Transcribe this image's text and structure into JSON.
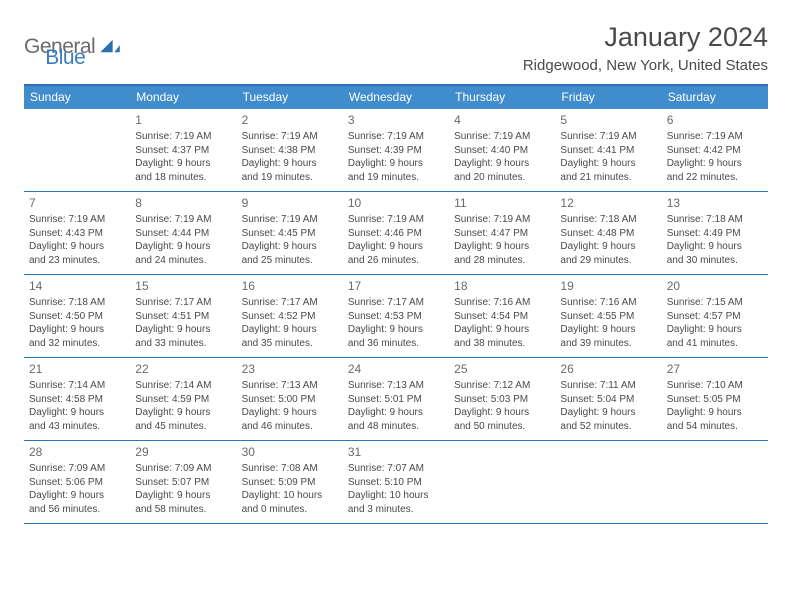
{
  "logo": {
    "part1": "General",
    "part2": "Blue"
  },
  "title": "January 2024",
  "location": "Ridgewood, New York, United States",
  "weekdays": [
    "Sunday",
    "Monday",
    "Tuesday",
    "Wednesday",
    "Thursday",
    "Friday",
    "Saturday"
  ],
  "colors": {
    "header_bg": "#418ccc",
    "header_border": "#2874b8",
    "logo_gray": "#6c6c6c",
    "logo_blue": "#3a7cbf",
    "text": "#4a4a4a"
  },
  "weeks": [
    [
      {
        "day": "",
        "sunrise": "",
        "sunset": "",
        "dl1": "",
        "dl2": ""
      },
      {
        "day": "1",
        "sunrise": "Sunrise: 7:19 AM",
        "sunset": "Sunset: 4:37 PM",
        "dl1": "Daylight: 9 hours",
        "dl2": "and 18 minutes."
      },
      {
        "day": "2",
        "sunrise": "Sunrise: 7:19 AM",
        "sunset": "Sunset: 4:38 PM",
        "dl1": "Daylight: 9 hours",
        "dl2": "and 19 minutes."
      },
      {
        "day": "3",
        "sunrise": "Sunrise: 7:19 AM",
        "sunset": "Sunset: 4:39 PM",
        "dl1": "Daylight: 9 hours",
        "dl2": "and 19 minutes."
      },
      {
        "day": "4",
        "sunrise": "Sunrise: 7:19 AM",
        "sunset": "Sunset: 4:40 PM",
        "dl1": "Daylight: 9 hours",
        "dl2": "and 20 minutes."
      },
      {
        "day": "5",
        "sunrise": "Sunrise: 7:19 AM",
        "sunset": "Sunset: 4:41 PM",
        "dl1": "Daylight: 9 hours",
        "dl2": "and 21 minutes."
      },
      {
        "day": "6",
        "sunrise": "Sunrise: 7:19 AM",
        "sunset": "Sunset: 4:42 PM",
        "dl1": "Daylight: 9 hours",
        "dl2": "and 22 minutes."
      }
    ],
    [
      {
        "day": "7",
        "sunrise": "Sunrise: 7:19 AM",
        "sunset": "Sunset: 4:43 PM",
        "dl1": "Daylight: 9 hours",
        "dl2": "and 23 minutes."
      },
      {
        "day": "8",
        "sunrise": "Sunrise: 7:19 AM",
        "sunset": "Sunset: 4:44 PM",
        "dl1": "Daylight: 9 hours",
        "dl2": "and 24 minutes."
      },
      {
        "day": "9",
        "sunrise": "Sunrise: 7:19 AM",
        "sunset": "Sunset: 4:45 PM",
        "dl1": "Daylight: 9 hours",
        "dl2": "and 25 minutes."
      },
      {
        "day": "10",
        "sunrise": "Sunrise: 7:19 AM",
        "sunset": "Sunset: 4:46 PM",
        "dl1": "Daylight: 9 hours",
        "dl2": "and 26 minutes."
      },
      {
        "day": "11",
        "sunrise": "Sunrise: 7:19 AM",
        "sunset": "Sunset: 4:47 PM",
        "dl1": "Daylight: 9 hours",
        "dl2": "and 28 minutes."
      },
      {
        "day": "12",
        "sunrise": "Sunrise: 7:18 AM",
        "sunset": "Sunset: 4:48 PM",
        "dl1": "Daylight: 9 hours",
        "dl2": "and 29 minutes."
      },
      {
        "day": "13",
        "sunrise": "Sunrise: 7:18 AM",
        "sunset": "Sunset: 4:49 PM",
        "dl1": "Daylight: 9 hours",
        "dl2": "and 30 minutes."
      }
    ],
    [
      {
        "day": "14",
        "sunrise": "Sunrise: 7:18 AM",
        "sunset": "Sunset: 4:50 PM",
        "dl1": "Daylight: 9 hours",
        "dl2": "and 32 minutes."
      },
      {
        "day": "15",
        "sunrise": "Sunrise: 7:17 AM",
        "sunset": "Sunset: 4:51 PM",
        "dl1": "Daylight: 9 hours",
        "dl2": "and 33 minutes."
      },
      {
        "day": "16",
        "sunrise": "Sunrise: 7:17 AM",
        "sunset": "Sunset: 4:52 PM",
        "dl1": "Daylight: 9 hours",
        "dl2": "and 35 minutes."
      },
      {
        "day": "17",
        "sunrise": "Sunrise: 7:17 AM",
        "sunset": "Sunset: 4:53 PM",
        "dl1": "Daylight: 9 hours",
        "dl2": "and 36 minutes."
      },
      {
        "day": "18",
        "sunrise": "Sunrise: 7:16 AM",
        "sunset": "Sunset: 4:54 PM",
        "dl1": "Daylight: 9 hours",
        "dl2": "and 38 minutes."
      },
      {
        "day": "19",
        "sunrise": "Sunrise: 7:16 AM",
        "sunset": "Sunset: 4:55 PM",
        "dl1": "Daylight: 9 hours",
        "dl2": "and 39 minutes."
      },
      {
        "day": "20",
        "sunrise": "Sunrise: 7:15 AM",
        "sunset": "Sunset: 4:57 PM",
        "dl1": "Daylight: 9 hours",
        "dl2": "and 41 minutes."
      }
    ],
    [
      {
        "day": "21",
        "sunrise": "Sunrise: 7:14 AM",
        "sunset": "Sunset: 4:58 PM",
        "dl1": "Daylight: 9 hours",
        "dl2": "and 43 minutes."
      },
      {
        "day": "22",
        "sunrise": "Sunrise: 7:14 AM",
        "sunset": "Sunset: 4:59 PM",
        "dl1": "Daylight: 9 hours",
        "dl2": "and 45 minutes."
      },
      {
        "day": "23",
        "sunrise": "Sunrise: 7:13 AM",
        "sunset": "Sunset: 5:00 PM",
        "dl1": "Daylight: 9 hours",
        "dl2": "and 46 minutes."
      },
      {
        "day": "24",
        "sunrise": "Sunrise: 7:13 AM",
        "sunset": "Sunset: 5:01 PM",
        "dl1": "Daylight: 9 hours",
        "dl2": "and 48 minutes."
      },
      {
        "day": "25",
        "sunrise": "Sunrise: 7:12 AM",
        "sunset": "Sunset: 5:03 PM",
        "dl1": "Daylight: 9 hours",
        "dl2": "and 50 minutes."
      },
      {
        "day": "26",
        "sunrise": "Sunrise: 7:11 AM",
        "sunset": "Sunset: 5:04 PM",
        "dl1": "Daylight: 9 hours",
        "dl2": "and 52 minutes."
      },
      {
        "day": "27",
        "sunrise": "Sunrise: 7:10 AM",
        "sunset": "Sunset: 5:05 PM",
        "dl1": "Daylight: 9 hours",
        "dl2": "and 54 minutes."
      }
    ],
    [
      {
        "day": "28",
        "sunrise": "Sunrise: 7:09 AM",
        "sunset": "Sunset: 5:06 PM",
        "dl1": "Daylight: 9 hours",
        "dl2": "and 56 minutes."
      },
      {
        "day": "29",
        "sunrise": "Sunrise: 7:09 AM",
        "sunset": "Sunset: 5:07 PM",
        "dl1": "Daylight: 9 hours",
        "dl2": "and 58 minutes."
      },
      {
        "day": "30",
        "sunrise": "Sunrise: 7:08 AM",
        "sunset": "Sunset: 5:09 PM",
        "dl1": "Daylight: 10 hours",
        "dl2": "and 0 minutes."
      },
      {
        "day": "31",
        "sunrise": "Sunrise: 7:07 AM",
        "sunset": "Sunset: 5:10 PM",
        "dl1": "Daylight: 10 hours",
        "dl2": "and 3 minutes."
      },
      {
        "day": "",
        "sunrise": "",
        "sunset": "",
        "dl1": "",
        "dl2": ""
      },
      {
        "day": "",
        "sunrise": "",
        "sunset": "",
        "dl1": "",
        "dl2": ""
      },
      {
        "day": "",
        "sunrise": "",
        "sunset": "",
        "dl1": "",
        "dl2": ""
      }
    ]
  ]
}
